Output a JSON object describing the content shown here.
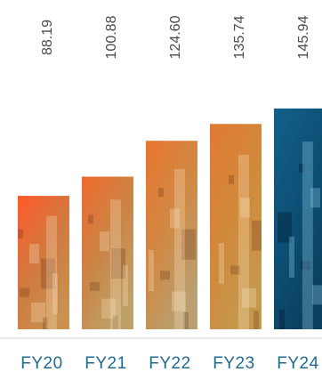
{
  "chart_data": {
    "type": "bar",
    "categories": [
      "FY20",
      "FY21",
      "FY22",
      "FY23",
      "FY24"
    ],
    "values": [
      88.19,
      100.88,
      124.6,
      135.74,
      145.94
    ],
    "value_labels": [
      "88.19",
      "100.88",
      "124.60",
      "135.74",
      "145.94"
    ],
    "title": "",
    "xlabel": "",
    "ylabel": "",
    "ylim": [
      0,
      160
    ],
    "grid": false,
    "legend": "none",
    "bar_fill": "photo texture with color gradient",
    "bar_colors": [
      [
        "#ff5a2a",
        "#d07a40",
        "#c9904f"
      ],
      [
        "#ef6a2c",
        "#c98648",
        "#bfa066"
      ],
      [
        "#e9762e",
        "#cf8a46",
        "#b9a070"
      ],
      [
        "#e27a34",
        "#d08a3c",
        "#c4994e"
      ],
      [
        "#13608a",
        "#0c4f74",
        "#0a3f5e"
      ]
    ],
    "label_color": "#4a4a4a",
    "category_color": "#1f6b8f",
    "axis_line_color": "#d9d3c8"
  }
}
